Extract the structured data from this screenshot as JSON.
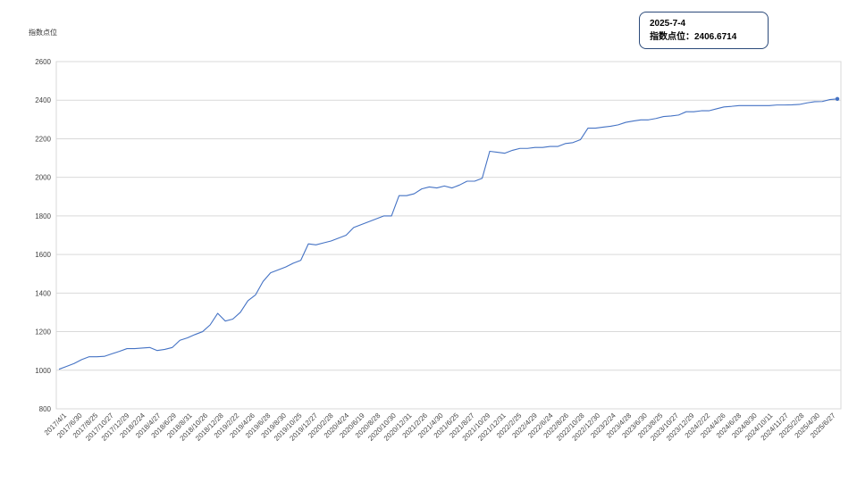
{
  "chart_data": {
    "type": "line",
    "ylabel": "指数点位",
    "xlabel": "",
    "title": "",
    "ylim": [
      800,
      2600
    ],
    "yticks": [
      800,
      1000,
      1200,
      1400,
      1600,
      1800,
      2000,
      2200,
      2400,
      2600
    ],
    "grid": true,
    "line_color": "#4472c4",
    "x_tick_labels": [
      "2017/4/1",
      "2017/6/30",
      "2017/8/25",
      "2017/10/27",
      "2017/12/29",
      "2018/2/24",
      "2018/4/27",
      "2018/6/29",
      "2018/8/31",
      "2018/10/26",
      "2018/12/28",
      "2019/2/22",
      "2019/4/26",
      "2019/6/28",
      "2019/8/30",
      "2019/10/25",
      "2019/12/27",
      "2020/2/28",
      "2020/4/24",
      "2020/6/19",
      "2020/8/28",
      "2020/10/30",
      "2020/12/31",
      "2021/2/26",
      "2021/4/30",
      "2021/6/25",
      "2021/8/27",
      "2021/10/29",
      "2021/12/31",
      "2022/2/25",
      "2022/4/29",
      "2022/6/24",
      "2022/8/26",
      "2022/10/28",
      "2022/12/30",
      "2023/2/24",
      "2023/4/28",
      "2023/6/30",
      "2023/8/25",
      "2023/10/27",
      "2023/12/29",
      "2024/2/22",
      "2024/4/26",
      "2024/6/28",
      "2024/8/30",
      "2024/10/11",
      "2024/11/27",
      "2025/2/28",
      "2025/4/30",
      "2025/6/27"
    ],
    "series": [
      {
        "values": [
          1005,
          1020,
          1035,
          1055,
          1070,
          1070,
          1072,
          1085,
          1098,
          1112,
          1112,
          1115,
          1118,
          1102,
          1108,
          1118,
          1155,
          1168,
          1185,
          1200,
          1235,
          1295,
          1255,
          1265,
          1300,
          1360,
          1390,
          1460,
          1505,
          1520,
          1535,
          1555,
          1570,
          1655,
          1650,
          1660,
          1670,
          1685,
          1700,
          1740,
          1755,
          1770,
          1785,
          1800,
          1800,
          1905,
          1905,
          1915,
          1940,
          1950,
          1945,
          1955,
          1945,
          1960,
          1980,
          1980,
          1995,
          2135,
          2130,
          2125,
          2140,
          2150,
          2150,
          2155,
          2155,
          2160,
          2160,
          2175,
          2180,
          2195,
          2255,
          2255,
          2260,
          2265,
          2272,
          2285,
          2292,
          2298,
          2298,
          2305,
          2315,
          2318,
          2323,
          2340,
          2340,
          2345,
          2345,
          2355,
          2365,
          2368,
          2372,
          2372,
          2372,
          2372,
          2372,
          2375,
          2375,
          2376,
          2378,
          2386,
          2392,
          2393,
          2403,
          2406.6714
        ]
      }
    ]
  },
  "tooltip": {
    "date": "2025-7-4",
    "value_text": "指数点位：2406.6714"
  }
}
